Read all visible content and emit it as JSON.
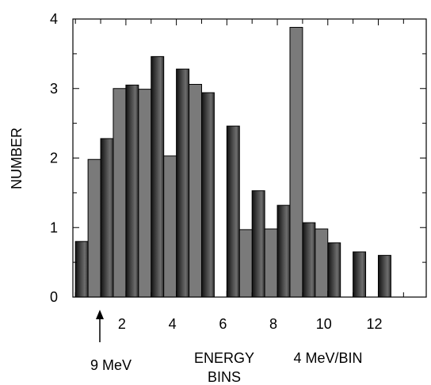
{
  "chart_data": {
    "type": "bar",
    "ylabel": "NUMBER",
    "xlabel": [
      "ENERGY",
      "BINS"
    ],
    "ylim": [
      0,
      4
    ],
    "xlim": [
      -0.1,
      13.9
    ],
    "yticks": [
      "0",
      "1",
      "2",
      "3",
      "4"
    ],
    "xticks": [
      "2",
      "4",
      "6",
      "8",
      "10",
      "12"
    ],
    "grid": false,
    "series": [
      {
        "style": "dark-gradient",
        "color": "#333333",
        "x": [
          0.25,
          1.25,
          2.25,
          3.25,
          4.25,
          5.25,
          6.25,
          7.25,
          8.25,
          9.25,
          10.25,
          11.25,
          12.25,
          13.25
        ],
        "values": [
          0.8,
          2.28,
          3.05,
          3.46,
          3.28,
          2.94,
          2.46,
          1.53,
          1.32,
          1.07,
          0.78,
          0.65,
          0.6,
          null
        ]
      },
      {
        "style": "gray",
        "color": "#7a7a7a",
        "x": [
          0.75,
          1.75,
          2.75,
          3.75,
          4.75,
          5.75,
          6.75,
          7.75,
          8.75,
          9.75
        ],
        "values": [
          1.98,
          3.0,
          2.99,
          2.03,
          3.06,
          null,
          0.97,
          0.98,
          3.88,
          0.98
        ]
      }
    ],
    "annotations": {
      "arrow_label": "9 MeV",
      "bin_width": "4 MeV/BIN"
    }
  }
}
